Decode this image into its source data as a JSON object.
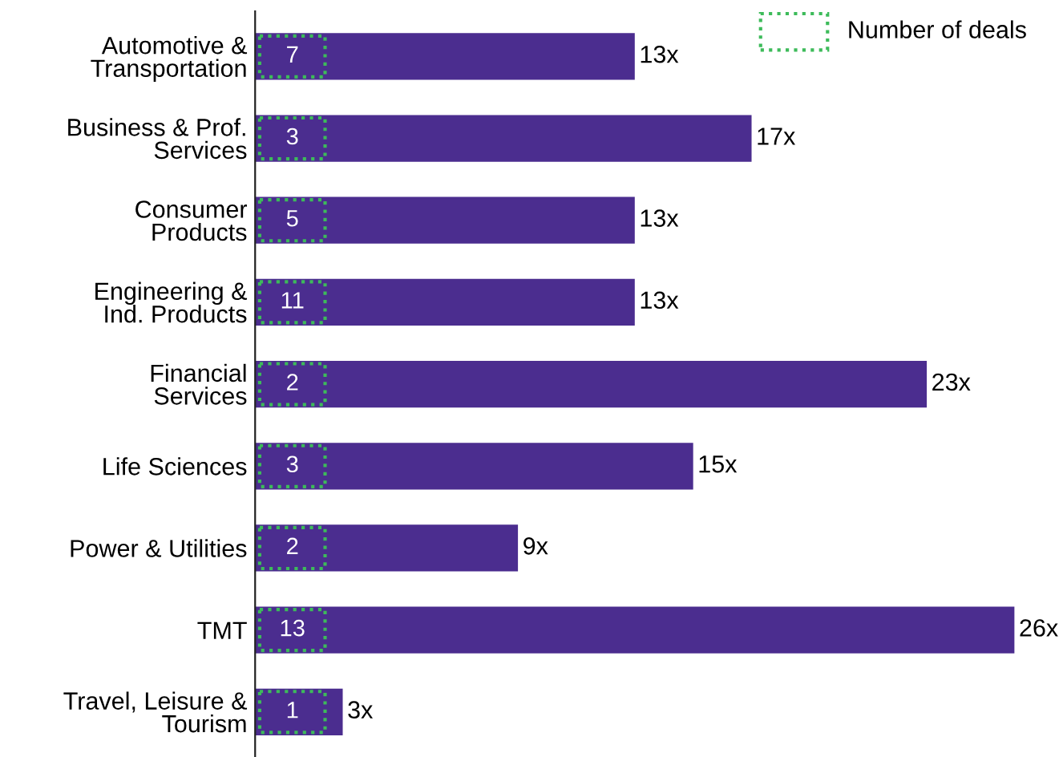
{
  "chart_data": {
    "type": "bar",
    "orientation": "horizontal",
    "categories": [
      "Automotive &\nTransportation",
      "Business & Prof.\nServices",
      "Consumer\nProducts",
      "Engineering &\nInd. Products",
      "Financial\nServices",
      "Life Sciences",
      "Power & Utilities",
      "TMT",
      "Travel, Leisure &\nTourism"
    ],
    "tick_labels": "y",
    "series": [
      {
        "color": "#4b2d8f",
        "values": [
          13,
          17,
          13,
          13,
          23,
          15,
          9,
          26,
          3
        ],
        "value_labels": [
          "13x",
          "17x",
          "13x",
          "13x",
          "23x",
          "15x",
          "9x",
          "26x",
          "3x"
        ]
      }
    ],
    "annotations": [
      "Number of deals",
      {
        "text": "7",
        "y": "Automotive &\nTransportation"
      },
      {
        "text": "3",
        "y": "Business & Prof.\nServices"
      },
      {
        "text": "5",
        "y": "Consumer\nProducts"
      },
      {
        "text": "11",
        "y": "Engineering &\nInd. Products"
      },
      {
        "text": "2",
        "y": "Financial\nServices"
      },
      {
        "text": "3",
        "y": "Life Sciences"
      },
      {
        "text": "2",
        "y": "Power & Utilities"
      },
      {
        "text": "13",
        "y": "TMT"
      },
      {
        "text": "1",
        "y": "Travel, Leisure &\nTourism"
      }
    ]
  }
}
